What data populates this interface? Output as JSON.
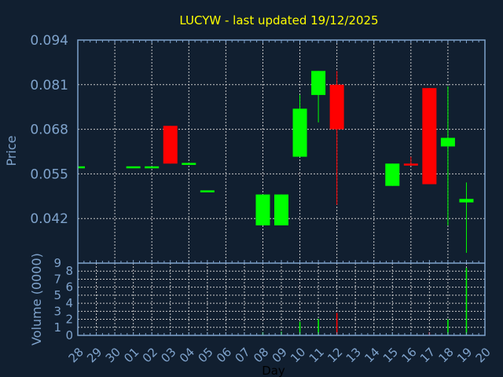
{
  "chart_data": [
    {
      "type": "candlestick",
      "title": "LUCYW - last updated 19/12/2025",
      "ylabel": "Price",
      "xlabel": "Day",
      "x_tick_labels": [
        "28",
        "29",
        "30",
        "01",
        "02",
        "03",
        "04",
        "05",
        "06",
        "07",
        "08",
        "09",
        "10",
        "11",
        "12",
        "13",
        "14",
        "15",
        "16",
        "17",
        "18",
        "19",
        "20"
      ],
      "y_tick_labels": [
        "0.094",
        "0.081",
        "0.068",
        "0.055",
        "0.042"
      ],
      "ylim": [
        0.029,
        0.094
      ],
      "grid": true,
      "colors": {
        "up": "#00ff00",
        "down": "#ff0000",
        "axis": "#7fa3cc",
        "grid": "#c8c8c8",
        "title": "#ffff00",
        "background": "#111f30"
      },
      "candles": [
        {
          "day": "28",
          "open": 0.057,
          "high": 0.057,
          "low": 0.057,
          "close": 0.0572
        },
        {
          "day": "01",
          "open": 0.057,
          "high": 0.057,
          "low": 0.057,
          "close": 0.0572
        },
        {
          "day": "02",
          "open": 0.057,
          "high": 0.057,
          "low": 0.057,
          "close": 0.0572
        },
        {
          "day": "03",
          "open": 0.069,
          "high": 0.069,
          "low": 0.058,
          "close": 0.058
        },
        {
          "day": "04",
          "open": 0.058,
          "high": 0.058,
          "low": 0.058,
          "close": 0.0582
        },
        {
          "day": "05",
          "open": 0.05,
          "high": 0.05,
          "low": 0.05,
          "close": 0.0502
        },
        {
          "day": "08",
          "open": 0.04,
          "high": 0.049,
          "low": 0.04,
          "close": 0.049
        },
        {
          "day": "09",
          "open": 0.04,
          "high": 0.049,
          "low": 0.04,
          "close": 0.049
        },
        {
          "day": "10",
          "open": 0.06,
          "high": 0.078,
          "low": 0.06,
          "close": 0.074
        },
        {
          "day": "11",
          "open": 0.078,
          "high": 0.085,
          "low": 0.07,
          "close": 0.085
        },
        {
          "day": "12",
          "open": 0.081,
          "high": 0.085,
          "low": 0.046,
          "close": 0.068
        },
        {
          "day": "15",
          "open": 0.0515,
          "high": 0.058,
          "low": 0.0515,
          "close": 0.058
        },
        {
          "day": "16",
          "open": 0.058,
          "high": 0.06,
          "low": 0.0575,
          "close": 0.0575
        },
        {
          "day": "17",
          "open": 0.08,
          "high": 0.08,
          "low": 0.052,
          "close": 0.052
        },
        {
          "day": "18",
          "open": 0.063,
          "high": 0.0805,
          "low": 0.04,
          "close": 0.0655
        },
        {
          "day": "19",
          "open": 0.0467,
          "high": 0.0525,
          "low": 0.032,
          "close": 0.0477
        }
      ]
    },
    {
      "type": "bar",
      "ylabel": "Volume (0000)",
      "y_tick_labels": [
        "0",
        "1",
        "2",
        "3",
        "4",
        "5",
        "6",
        "7",
        "8",
        "9"
      ],
      "ylim": [
        0,
        9
      ],
      "grid": true,
      "bars": [
        {
          "day": "03",
          "value": 0.1,
          "direction": "down"
        },
        {
          "day": "05",
          "value": 0.05,
          "direction": "up"
        },
        {
          "day": "08",
          "value": 0.4,
          "direction": "up"
        },
        {
          "day": "09",
          "value": 0.45,
          "direction": "up"
        },
        {
          "day": "10",
          "value": 1.7,
          "direction": "up"
        },
        {
          "day": "11",
          "value": 2.05,
          "direction": "up"
        },
        {
          "day": "12",
          "value": 2.8,
          "direction": "down"
        },
        {
          "day": "15",
          "value": 0.1,
          "direction": "up"
        },
        {
          "day": "17",
          "value": 0.4,
          "direction": "down"
        },
        {
          "day": "18",
          "value": 2.0,
          "direction": "up"
        },
        {
          "day": "19",
          "value": 8.4,
          "direction": "up"
        }
      ]
    }
  ]
}
